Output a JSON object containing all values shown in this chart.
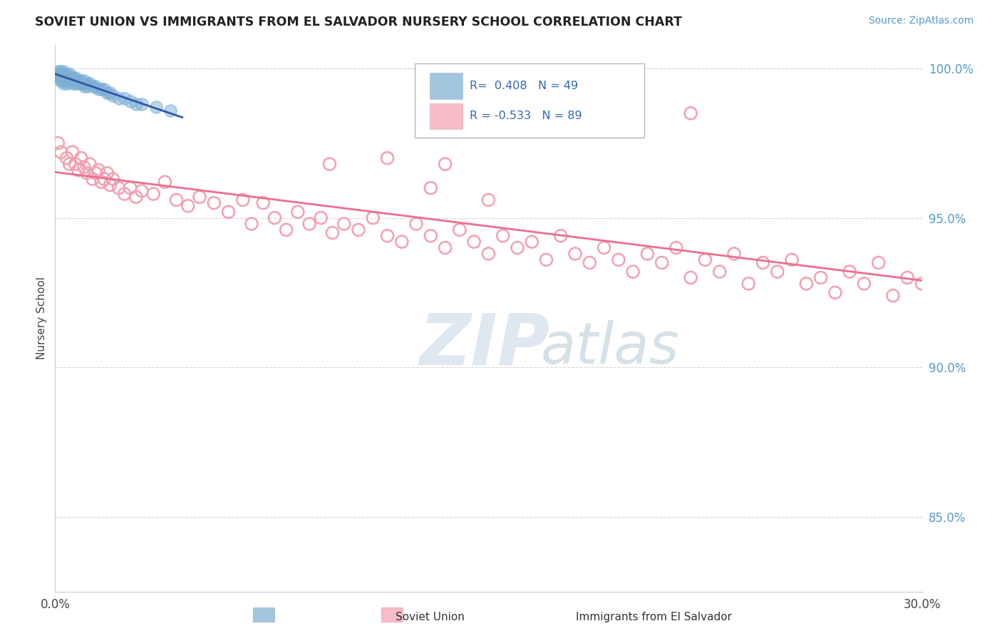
{
  "title": "SOVIET UNION VS IMMIGRANTS FROM EL SALVADOR NURSERY SCHOOL CORRELATION CHART",
  "source": "Source: ZipAtlas.com",
  "ylabel": "Nursery School",
  "xlim": [
    0.0,
    0.3
  ],
  "ylim": [
    0.825,
    1.008
  ],
  "xtick_positions": [
    0.0,
    0.15,
    0.3
  ],
  "xticklabels": [
    "0.0%",
    "",
    "30.0%"
  ],
  "ytick_positions": [
    0.85,
    0.9,
    0.95,
    1.0
  ],
  "yticklabels": [
    "85.0%",
    "90.0%",
    "95.0%",
    "100.0%"
  ],
  "blue_R": 0.408,
  "blue_N": 49,
  "pink_R": -0.533,
  "pink_N": 89,
  "blue_color": "#7BAFD4",
  "pink_color": "#F4A0B0",
  "blue_line_color": "#3355AA",
  "pink_line_color": "#E87090",
  "background_color": "#FFFFFF",
  "grid_color": "#CCCCCC",
  "title_color": "#222222",
  "ylabel_color": "#444444",
  "ytick_color": "#5599CC",
  "xtick_color": "#444444",
  "source_color": "#5599CC",
  "legend_text_color": "#3366BB",
  "watermark_color": "#C8D8E8",
  "blue_x": [
    0.001,
    0.001,
    0.001,
    0.002,
    0.002,
    0.002,
    0.002,
    0.003,
    0.003,
    0.003,
    0.003,
    0.003,
    0.004,
    0.004,
    0.004,
    0.004,
    0.005,
    0.005,
    0.005,
    0.006,
    0.006,
    0.006,
    0.007,
    0.007,
    0.007,
    0.008,
    0.008,
    0.009,
    0.009,
    0.01,
    0.01,
    0.011,
    0.011,
    0.012,
    0.013,
    0.014,
    0.015,
    0.016,
    0.017,
    0.018,
    0.019,
    0.02,
    0.022,
    0.024,
    0.026,
    0.028,
    0.03,
    0.035,
    0.04
  ],
  "blue_y": [
    0.999,
    0.998,
    0.997,
    0.999,
    0.998,
    0.997,
    0.996,
    0.999,
    0.998,
    0.997,
    0.996,
    0.995,
    0.998,
    0.997,
    0.996,
    0.995,
    0.998,
    0.997,
    0.996,
    0.997,
    0.996,
    0.995,
    0.997,
    0.996,
    0.995,
    0.996,
    0.995,
    0.996,
    0.995,
    0.996,
    0.994,
    0.995,
    0.994,
    0.995,
    0.994,
    0.994,
    0.993,
    0.993,
    0.993,
    0.992,
    0.992,
    0.991,
    0.99,
    0.99,
    0.989,
    0.988,
    0.988,
    0.987,
    0.986
  ],
  "pink_x": [
    0.001,
    0.002,
    0.004,
    0.005,
    0.006,
    0.007,
    0.008,
    0.009,
    0.01,
    0.011,
    0.012,
    0.013,
    0.014,
    0.015,
    0.016,
    0.017,
    0.018,
    0.019,
    0.02,
    0.022,
    0.024,
    0.026,
    0.028,
    0.03,
    0.034,
    0.038,
    0.042,
    0.046,
    0.05,
    0.055,
    0.06,
    0.065,
    0.068,
    0.072,
    0.076,
    0.08,
    0.084,
    0.088,
    0.092,
    0.096,
    0.1,
    0.105,
    0.11,
    0.115,
    0.12,
    0.125,
    0.13,
    0.135,
    0.14,
    0.145,
    0.15,
    0.155,
    0.16,
    0.165,
    0.17,
    0.175,
    0.18,
    0.185,
    0.19,
    0.195,
    0.2,
    0.205,
    0.21,
    0.215,
    0.22,
    0.225,
    0.23,
    0.235,
    0.24,
    0.245,
    0.25,
    0.255,
    0.26,
    0.265,
    0.27,
    0.275,
    0.28,
    0.285,
    0.29,
    0.295,
    0.3,
    0.13,
    0.15,
    0.18,
    0.2,
    0.22,
    0.095,
    0.115,
    0.135
  ],
  "pink_y": [
    0.975,
    0.972,
    0.97,
    0.968,
    0.972,
    0.968,
    0.966,
    0.97,
    0.967,
    0.965,
    0.968,
    0.963,
    0.965,
    0.966,
    0.962,
    0.963,
    0.965,
    0.961,
    0.963,
    0.96,
    0.958,
    0.96,
    0.957,
    0.959,
    0.958,
    0.962,
    0.956,
    0.954,
    0.957,
    0.955,
    0.952,
    0.956,
    0.948,
    0.955,
    0.95,
    0.946,
    0.952,
    0.948,
    0.95,
    0.945,
    0.948,
    0.946,
    0.95,
    0.944,
    0.942,
    0.948,
    0.944,
    0.94,
    0.946,
    0.942,
    0.938,
    0.944,
    0.94,
    0.942,
    0.936,
    0.944,
    0.938,
    0.935,
    0.94,
    0.936,
    0.932,
    0.938,
    0.935,
    0.94,
    0.93,
    0.936,
    0.932,
    0.938,
    0.928,
    0.935,
    0.932,
    0.936,
    0.928,
    0.93,
    0.925,
    0.932,
    0.928,
    0.935,
    0.924,
    0.93,
    0.928,
    0.96,
    0.956,
    0.99,
    0.988,
    0.985,
    0.968,
    0.97,
    0.968
  ]
}
